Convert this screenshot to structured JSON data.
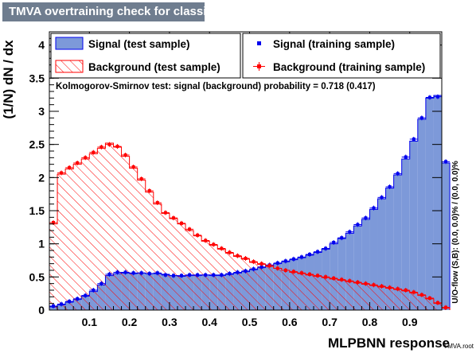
{
  "window": {
    "title": "TMVA overtraining check for classifier: MLPBNN"
  },
  "footer": {
    "brand": "TMVA.root"
  },
  "chart_data": {
    "type": "bar",
    "title": "TMVA overtraining check for classifier: MLPBNN",
    "xlabel": "MLPBNN response",
    "ylabel": "(1/N) dN / dx",
    "xlim": [
      0.0,
      0.98
    ],
    "ylim": [
      0,
      4.2
    ],
    "bin_width": 0.02,
    "x_ticks": [
      0.1,
      0.2,
      0.3,
      0.4,
      0.5,
      0.6,
      0.7,
      0.8,
      0.9
    ],
    "x_tick_labels": [
      "0.1",
      "0.2",
      "0.3",
      "0.4",
      "0.5",
      "0.6",
      "0.7",
      "0.8",
      "0.9"
    ],
    "y_ticks": [
      0,
      0.5,
      1,
      1.5,
      2,
      2.5,
      3,
      3.5,
      4
    ],
    "y_tick_labels": [
      "0",
      "0.5",
      "1",
      "1.5",
      "2",
      "2.5",
      "3",
      "3.5",
      "4"
    ],
    "annotation": "Kolmogorov-Smirnov test: signal (background) probability = 0.718 (0.417)",
    "side_label": "U/O-flow (S,B): (0.0, 0.0)% / (0.0, 0.0)%",
    "colors": {
      "signal_fill": "#7d99d9",
      "signal_line": "#0000ee",
      "background_line": "#ff0000",
      "frame": "#000000"
    },
    "legend": [
      {
        "label": "Signal (test sample)",
        "style": "filled-box"
      },
      {
        "label": "Signal (training sample)",
        "style": "blue-marker"
      },
      {
        "label": "Background (test sample)",
        "style": "hatched-box"
      },
      {
        "label": "Background (training sample)",
        "style": "red-marker"
      }
    ],
    "series": [
      {
        "name": "Signal (test sample)",
        "values": [
          0.05,
          0.08,
          0.12,
          0.16,
          0.21,
          0.28,
          0.38,
          0.52,
          0.55,
          0.56,
          0.55,
          0.56,
          0.55,
          0.55,
          0.54,
          0.52,
          0.51,
          0.52,
          0.52,
          0.53,
          0.52,
          0.52,
          0.54,
          0.56,
          0.58,
          0.61,
          0.64,
          0.67,
          0.7,
          0.73,
          0.76,
          0.79,
          0.83,
          0.87,
          0.92,
          1.0,
          1.08,
          1.16,
          1.27,
          1.37,
          1.52,
          1.68,
          1.84,
          2.04,
          2.28,
          2.55,
          2.88,
          3.2,
          3.24,
          2.22
        ]
      },
      {
        "name": "Signal (training sample)",
        "values": [
          0.06,
          0.09,
          0.13,
          0.17,
          0.22,
          0.3,
          0.4,
          0.54,
          0.57,
          0.57,
          0.56,
          0.56,
          0.55,
          0.56,
          0.53,
          0.52,
          0.52,
          0.53,
          0.53,
          0.53,
          0.53,
          0.53,
          0.55,
          0.57,
          0.59,
          0.62,
          0.65,
          0.68,
          0.71,
          0.74,
          0.77,
          0.8,
          0.84,
          0.88,
          0.93,
          1.02,
          1.09,
          1.18,
          1.29,
          1.39,
          1.54,
          1.7,
          1.86,
          2.06,
          2.31,
          2.58,
          2.9,
          3.21,
          3.22,
          2.24
        ]
      },
      {
        "name": "Background (test sample)",
        "values": [
          1.3,
          2.05,
          2.13,
          2.2,
          2.28,
          2.36,
          2.44,
          2.52,
          2.46,
          2.32,
          2.14,
          1.96,
          1.78,
          1.6,
          1.46,
          1.38,
          1.3,
          1.2,
          1.12,
          1.04,
          0.98,
          0.92,
          0.86,
          0.81,
          0.77,
          0.72,
          0.69,
          0.66,
          0.63,
          0.6,
          0.57,
          0.55,
          0.53,
          0.51,
          0.49,
          0.47,
          0.45,
          0.43,
          0.41,
          0.39,
          0.37,
          0.35,
          0.33,
          0.31,
          0.29,
          0.26,
          0.22,
          0.17,
          0.1,
          0.03
        ]
      },
      {
        "name": "Background (training sample)",
        "values": [
          1.32,
          2.07,
          2.15,
          2.22,
          2.3,
          2.38,
          2.46,
          2.5,
          2.47,
          2.34,
          2.16,
          1.98,
          1.8,
          1.62,
          1.47,
          1.39,
          1.31,
          1.22,
          1.13,
          1.05,
          0.99,
          0.93,
          0.87,
          0.82,
          0.78,
          0.73,
          0.7,
          0.67,
          0.63,
          0.6,
          0.58,
          0.56,
          0.54,
          0.52,
          0.5,
          0.48,
          0.46,
          0.44,
          0.42,
          0.4,
          0.38,
          0.36,
          0.34,
          0.32,
          0.3,
          0.27,
          0.23,
          0.18,
          0.11,
          0.04
        ]
      }
    ]
  }
}
